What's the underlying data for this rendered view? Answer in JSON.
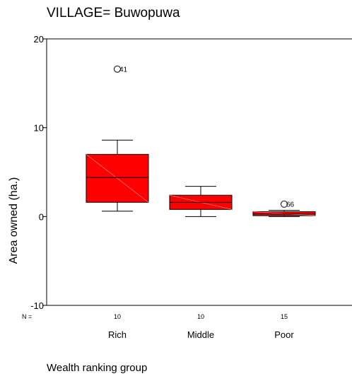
{
  "chart_data": {
    "type": "boxplot",
    "title": "VILLAGE= Buwopuwa",
    "xlabel": "Wealth ranking group",
    "ylabel": "Area owned (ha.)",
    "ylim": [
      -10,
      20
    ],
    "yticks": [
      -10,
      0,
      10,
      20
    ],
    "n_label": "N =",
    "box_color": "#ff0000",
    "categories": [
      "Rich",
      "Middle",
      "Poor"
    ],
    "boxes": [
      {
        "category": "Rich",
        "n": "10",
        "whisker_low": 0.6,
        "q1": 1.6,
        "median": 4.4,
        "q3": 7.0,
        "whisker_high": 8.6,
        "outliers": [
          {
            "value": 16.6,
            "label": "41"
          }
        ]
      },
      {
        "category": "Middle",
        "n": "10",
        "whisker_low": 0.0,
        "q1": 0.8,
        "median": 1.6,
        "q3": 2.4,
        "whisker_high": 3.4,
        "outliers": []
      },
      {
        "category": "Poor",
        "n": "15",
        "whisker_low": 0.0,
        "q1": 0.1,
        "median": 0.3,
        "q3": 0.55,
        "whisker_high": 0.7,
        "outliers": [
          {
            "value": 1.4,
            "label": "66"
          }
        ]
      }
    ]
  }
}
